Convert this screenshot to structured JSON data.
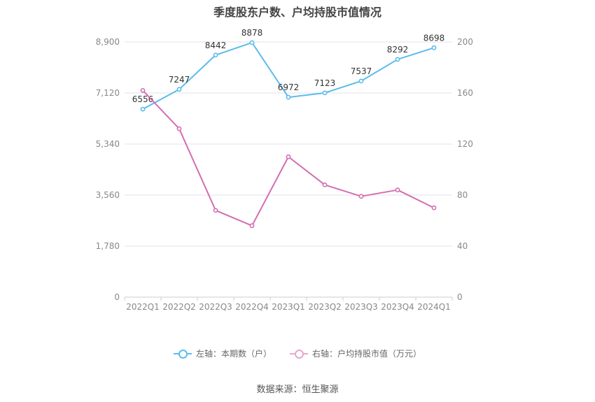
{
  "chart_data": {
    "type": "line",
    "title": "季度股东户数、户均持股市值情况",
    "categories": [
      "2022Q1",
      "2022Q2",
      "2022Q3",
      "2022Q4",
      "2023Q1",
      "2023Q2",
      "2023Q3",
      "2023Q4",
      "2024Q1"
    ],
    "left_axis": {
      "ticks": [
        "0",
        "1,780",
        "3,560",
        "5,340",
        "7,120",
        "8,900"
      ],
      "ylim": [
        0,
        8900
      ]
    },
    "right_axis": {
      "ticks": [
        "0",
        "40",
        "80",
        "120",
        "160",
        "200"
      ],
      "ylim": [
        0,
        200
      ]
    },
    "series": [
      {
        "name": "左轴：本期数（户）",
        "axis": "left",
        "color": "#5bbcec",
        "values": [
          6556,
          7247,
          8442,
          8878,
          6972,
          7123,
          7537,
          8292,
          8698
        ],
        "labels": [
          "6556",
          "7247",
          "8442",
          "8878",
          "6972",
          "7123",
          "7537",
          "8292",
          "8698"
        ]
      },
      {
        "name": "右轴：户均持股市值（万元）",
        "axis": "right",
        "color": "#d36db1",
        "values": [
          162,
          132,
          68,
          56,
          110,
          88,
          79,
          84,
          70
        ]
      }
    ],
    "grid": true,
    "legend": "bottom-center"
  },
  "legend": {
    "left_label": "左轴：本期数（户）",
    "right_label": "右轴：户均持股市值（万元）",
    "left_color": "#5bbcec",
    "right_color": "#e7a6cf"
  },
  "source": "数据来源：恒生聚源"
}
